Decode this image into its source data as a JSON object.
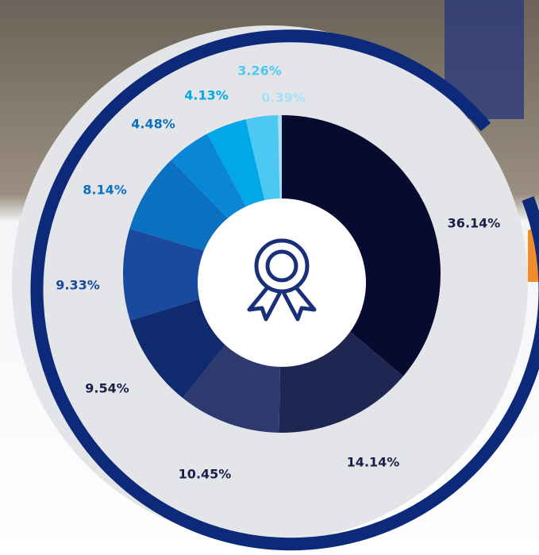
{
  "chart_data": {
    "type": "donut",
    "values": [
      36.14,
      14.14,
      10.45,
      9.54,
      9.33,
      8.14,
      4.48,
      4.13,
      3.26,
      0.39
    ],
    "value_labels": [
      "36.14%",
      "14.14%",
      "10.45%",
      "9.54%",
      "9.33%",
      "8.14%",
      "4.48%",
      "4.13%",
      "3.26%",
      "0.39%"
    ],
    "colors": [
      "#070b30",
      "#1f2652",
      "#2d3a6e",
      "#0f2a6e",
      "#1a4aa0",
      "#0b70bf",
      "#0a86d6",
      "#00a8e8",
      "#4dc8f2",
      "#a5e0f8"
    ],
    "label_colors": [
      "#1a1f4a",
      "#1a1f4a",
      "#1a1f4a",
      "#1a1f4a",
      "#1a4aa0",
      "#0b70bf",
      "#0b70bf",
      "#00a8e8",
      "#4dc8f2",
      "#a5e0f8"
    ]
  }
}
